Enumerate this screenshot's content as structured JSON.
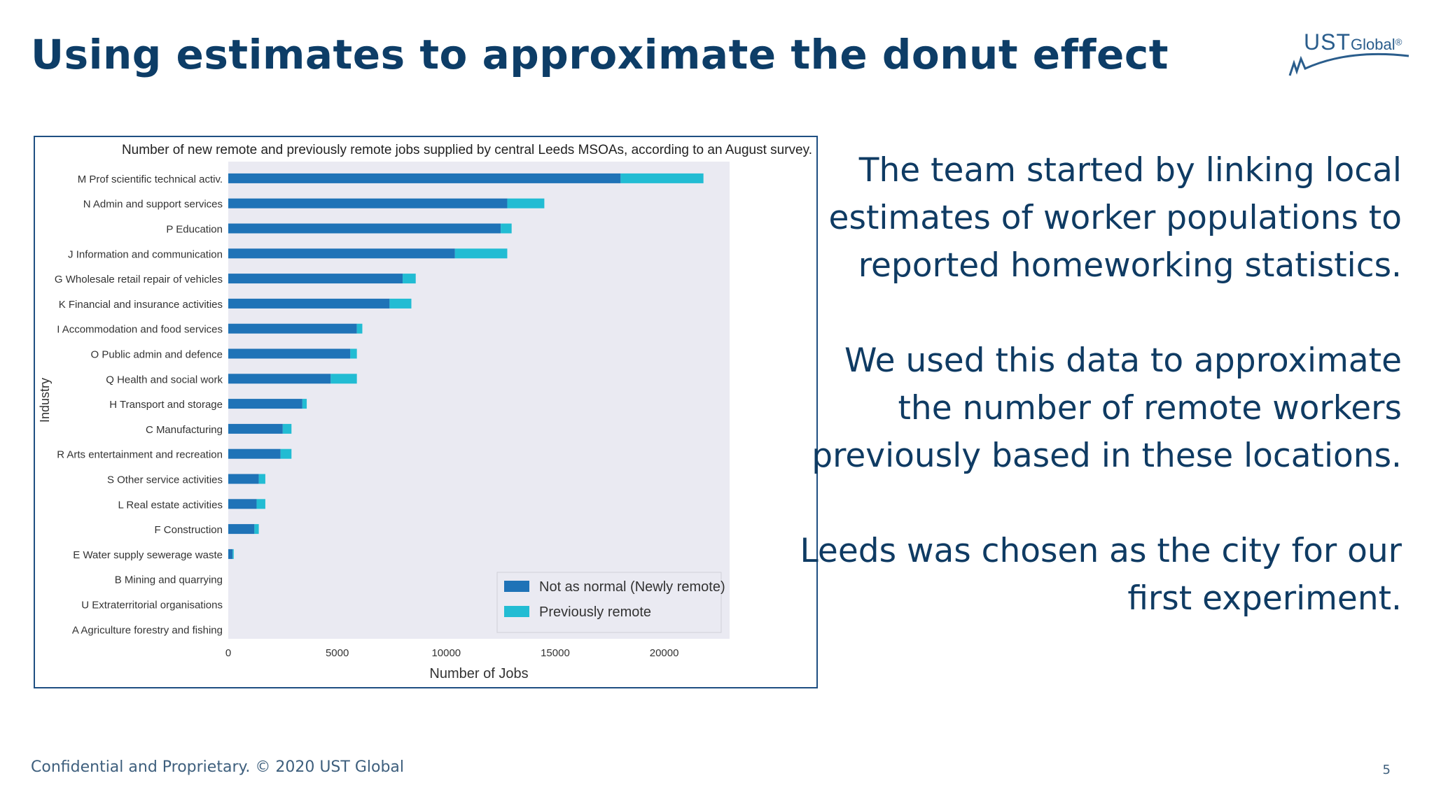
{
  "slide": {
    "title": "Using estimates to approximate the donut effect",
    "footer": "Confidential and Proprietary. © 2020 UST Global",
    "page_number": "5",
    "logo": {
      "primary": "UST",
      "secondary": "Global",
      "mark": "®"
    }
  },
  "body": {
    "paragraphs": [
      "The team started by linking local estimates of worker populations to reported homeworking statistics.",
      "We used this data to approximate the number of remote workers previously based in these locations.",
      "Leeds was chosen as the city for our first experiment."
    ]
  },
  "colors": {
    "title": "#0d3d67",
    "newly_remote": "#1f73b7",
    "previously_remote": "#22bcd3",
    "plot_bg": "#eaeaf2"
  },
  "chart_data": {
    "type": "bar",
    "orientation": "horizontal",
    "stacked": true,
    "title": "Number of new remote and previously remote jobs supplied by central Leeds MSOAs, according to an August survey.",
    "xlabel": "Number of Jobs",
    "ylabel": "Industry",
    "xlim": [
      0,
      23000
    ],
    "xticks": [
      0,
      5000,
      10000,
      15000,
      20000
    ],
    "xtick_labels": [
      "0",
      "5000",
      "10000",
      "15000",
      "20000"
    ],
    "grid": false,
    "legend_position": "lower-right",
    "categories": [
      "M  Prof scientific technical activ.",
      "N  Admin and support services",
      "P  Education",
      "J  Information and communication",
      "G  Wholesale retail repair of vehicles",
      "K  Financial and insurance activities",
      "I  Accommodation and food services",
      "O  Public admin and defence",
      "Q  Health and social work",
      "H  Transport and storage",
      "C  Manufacturing",
      "R  Arts entertainment and recreation",
      "S  Other service activities",
      "L  Real estate activities",
      "F  Construction",
      "E  Water supply sewerage waste",
      "B  Mining and quarrying",
      "U  Extraterritorial organisations",
      "A  Agriculture forestry and fishing"
    ],
    "series": [
      {
        "name": "Not as normal (Newly remote)",
        "color": "#1f73b7",
        "values": [
          18000,
          12800,
          12500,
          10400,
          8000,
          7400,
          5900,
          5600,
          4700,
          3400,
          2500,
          2400,
          1400,
          1300,
          1200,
          200,
          0,
          0,
          0
        ]
      },
      {
        "name": "Previously remote",
        "color": "#22bcd3",
        "values": [
          3800,
          1700,
          500,
          2400,
          600,
          1000,
          250,
          300,
          1200,
          200,
          400,
          500,
          300,
          400,
          200,
          50,
          0,
          0,
          0
        ]
      }
    ]
  }
}
